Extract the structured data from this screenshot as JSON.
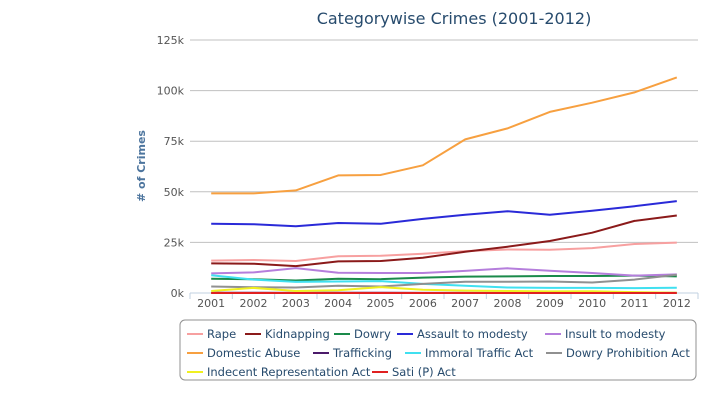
{
  "chart_data": {
    "type": "line",
    "title": "Categorywise Crimes (2001-2012)",
    "ylabel": "# of Crimes",
    "xlabel": "",
    "ylim": [
      0,
      125000
    ],
    "y_ticks": [
      0,
      25000,
      50000,
      75000,
      100000,
      125000
    ],
    "y_tick_labels": [
      "0k",
      "25k",
      "50k",
      "75k",
      "100k",
      "125k"
    ],
    "grid": true,
    "legend_position": "bottom",
    "categories": [
      "2001",
      "2002",
      "2003",
      "2004",
      "2005",
      "2006",
      "2007",
      "2008",
      "2009",
      "2010",
      "2011",
      "2012"
    ],
    "series": [
      {
        "name": "Rape",
        "color": "#f7a0a0",
        "values": [
          16000,
          16300,
          15800,
          18200,
          18400,
          19400,
          20700,
          21500,
          21400,
          22200,
          24200,
          24900
        ]
      },
      {
        "name": "Kidnapping",
        "color": "#8b1a1a",
        "values": [
          14600,
          14500,
          13300,
          15600,
          15800,
          17400,
          20400,
          22900,
          25700,
          29800,
          35600,
          38300
        ]
      },
      {
        "name": "Dowry",
        "color": "#1a8a4a",
        "values": [
          7000,
          6800,
          6200,
          7000,
          6800,
          7600,
          8100,
          8200,
          8400,
          8400,
          8600,
          8200
        ]
      },
      {
        "name": "Assault to modesty",
        "color": "#2a2ad8",
        "values": [
          34200,
          34000,
          33000,
          34600,
          34200,
          36600,
          38700,
          40400,
          38700,
          40600,
          42900,
          45400
        ]
      },
      {
        "name": "Insult to modesty",
        "color": "#b57edc",
        "values": [
          9700,
          10200,
          12300,
          10000,
          9900,
          9900,
          10900,
          12200,
          11000,
          9900,
          8600,
          9200
        ]
      },
      {
        "name": "Domestic Abuse",
        "color": "#f7a040",
        "values": [
          49200,
          49200,
          50700,
          58100,
          58300,
          63100,
          75900,
          81300,
          89500,
          94000,
          99100,
          106500
        ]
      },
      {
        "name": "Trafficking",
        "color": "#4b1a6a",
        "values": [
          100,
          100,
          50,
          90,
          150,
          70,
          60,
          70,
          60,
          40,
          80,
          60
        ]
      },
      {
        "name": "Immoral Traffic Act",
        "color": "#40e0f0",
        "values": [
          8800,
          6600,
          5500,
          5700,
          5900,
          4500,
          3600,
          2700,
          2500,
          2500,
          2400,
          2600
        ]
      },
      {
        "name": "Dowry Prohibition Act",
        "color": "#909090",
        "values": [
          3200,
          2800,
          2700,
          3600,
          3200,
          4500,
          5600,
          5600,
          5700,
          5200,
          6600,
          9000
        ]
      },
      {
        "name": "Indecent Representation Act",
        "color": "#f0f020",
        "values": [
          1000,
          2500,
          1000,
          1400,
          2900,
          1600,
          1200,
          1000,
          800,
          900,
          450,
          140
        ]
      },
      {
        "name": "Sati (P) Act",
        "color": "#e02020",
        "values": [
          0,
          0,
          0,
          0,
          1,
          0,
          0,
          1,
          0,
          0,
          1,
          0
        ]
      }
    ]
  }
}
